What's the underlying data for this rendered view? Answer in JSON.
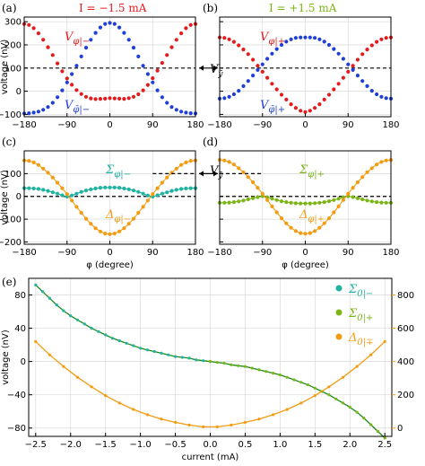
{
  "colors": {
    "red": "#e41a1c",
    "blue": "#1f3fd8",
    "teal": "#21b3a2",
    "olive": "#7cb516",
    "orange": "#f39c12",
    "darkgreen": "#1a8a1a",
    "gray": "#b8b8b8"
  },
  "chart_data": [
    {
      "panel": "(a)",
      "type": "scatter",
      "title": "I = −1.5 mA",
      "xlabel": "",
      "ylabel": "voltage (nV)",
      "xlim": [
        -180,
        180
      ],
      "ylim": [
        -110,
        320
      ],
      "xticks": [
        -180,
        -90,
        0,
        90,
        180
      ],
      "yticks": [
        -100,
        0,
        100,
        200,
        300
      ],
      "reference_line": 100,
      "series": [
        {
          "name": "V_φ|−",
          "color": "red",
          "x": [
            -180,
            -170,
            -160,
            -150,
            -140,
            -130,
            -120,
            -110,
            -100,
            -90,
            -80,
            -70,
            -60,
            -50,
            -40,
            -30,
            -20,
            -10,
            0,
            10,
            20,
            30,
            40,
            50,
            60,
            70,
            80,
            90,
            100,
            110,
            120,
            130,
            140,
            150,
            160,
            170,
            180
          ],
          "y": [
            290,
            286,
            272,
            250,
            222,
            190,
            156,
            120,
            86,
            55,
            28,
            5,
            -12,
            -24,
            -31,
            -34,
            -33,
            -32,
            -30,
            -31,
            -32,
            -33,
            -30,
            -24,
            -13,
            4,
            27,
            56,
            89,
            122,
            156,
            190,
            222,
            250,
            272,
            286,
            290
          ]
        },
        {
          "name": "V_φ̄|−",
          "color": "blue",
          "x": [
            -180,
            -170,
            -160,
            -150,
            -140,
            -130,
            -120,
            -110,
            -100,
            -90,
            -80,
            -70,
            -60,
            -50,
            -40,
            -30,
            -20,
            -10,
            0,
            10,
            20,
            30,
            40,
            50,
            60,
            70,
            80,
            90,
            100,
            110,
            120,
            130,
            140,
            150,
            160,
            170,
            180
          ],
          "y": [
            -96,
            -95,
            -92,
            -88,
            -80,
            -68,
            -50,
            -26,
            4,
            38,
            74,
            110,
            150,
            188,
            222,
            252,
            275,
            290,
            295,
            290,
            275,
            252,
            222,
            188,
            150,
            110,
            74,
            38,
            4,
            -26,
            -50,
            -68,
            -80,
            -88,
            -92,
            -95,
            -96
          ]
        }
      ]
    },
    {
      "panel": "(b)",
      "type": "scatter",
      "title": "I = +1.5 mA",
      "xlabel": "",
      "ylabel": "",
      "xlim": [
        -180,
        180
      ],
      "ylim": [
        -110,
        320
      ],
      "xticks": [
        -180,
        -90,
        0,
        90,
        180
      ],
      "yticks": [
        -100,
        0,
        100,
        200,
        300
      ],
      "reference_line": 100,
      "series": [
        {
          "name": "V_φ|+",
          "color": "red",
          "x": [
            -180,
            -170,
            -160,
            -150,
            -140,
            -130,
            -120,
            -110,
            -100,
            -90,
            -80,
            -70,
            -60,
            -50,
            -40,
            -30,
            -20,
            -10,
            0,
            10,
            20,
            30,
            40,
            50,
            60,
            70,
            80,
            90,
            100,
            110,
            120,
            130,
            140,
            150,
            160,
            170,
            180
          ],
          "y": [
            232,
            230,
            224,
            213,
            198,
            180,
            160,
            136,
            110,
            84,
            58,
            32,
            8,
            -15,
            -36,
            -56,
            -72,
            -84,
            -90,
            -84,
            -72,
            -56,
            -36,
            -15,
            8,
            32,
            58,
            84,
            110,
            136,
            160,
            180,
            198,
            213,
            224,
            230,
            232
          ]
        },
        {
          "name": "V_φ̄|+",
          "color": "blue",
          "x": [
            -180,
            -170,
            -160,
            -150,
            -140,
            -130,
            -120,
            -110,
            -100,
            -90,
            -80,
            -70,
            -60,
            -50,
            -40,
            -30,
            -20,
            -10,
            0,
            10,
            20,
            30,
            40,
            50,
            60,
            70,
            80,
            90,
            100,
            110,
            120,
            130,
            140,
            150,
            160,
            170,
            180
          ],
          "y": [
            -32,
            -30,
            -24,
            -13,
            2,
            22,
            44,
            68,
            92,
            116,
            140,
            162,
            182,
            200,
            214,
            224,
            230,
            232,
            232,
            232,
            230,
            224,
            214,
            200,
            182,
            162,
            140,
            116,
            92,
            68,
            44,
            22,
            2,
            -13,
            -24,
            -30,
            -32
          ]
        }
      ]
    },
    {
      "panel": "(c)",
      "type": "line",
      "xlabel": "φ (degree)",
      "ylabel": "voltage (nV)",
      "xlim": [
        -180,
        180
      ],
      "ylim": [
        -210,
        200
      ],
      "xticks": [
        -180,
        -90,
        0,
        90,
        180
      ],
      "yticks": [
        -200,
        -100,
        0,
        100
      ],
      "reference_line": 0,
      "series": [
        {
          "name": "Σ_φ|−",
          "color": "teal",
          "x": [
            -180,
            -170,
            -160,
            -150,
            -140,
            -130,
            -120,
            -110,
            -100,
            -90,
            -80,
            -70,
            -60,
            -50,
            -40,
            -30,
            -20,
            -10,
            0,
            10,
            20,
            30,
            40,
            50,
            60,
            70,
            80,
            90,
            100,
            110,
            120,
            130,
            140,
            150,
            160,
            170,
            180
          ],
          "y": [
            36,
            36,
            35,
            33,
            29,
            24,
            18,
            12,
            5,
            -1,
            4,
            12,
            20,
            26,
            31,
            35,
            38,
            39,
            39,
            39,
            38,
            35,
            31,
            26,
            20,
            12,
            4,
            -1,
            5,
            12,
            18,
            24,
            29,
            33,
            35,
            36,
            36
          ]
        },
        {
          "name": "Δ_φ|−",
          "color": "orange",
          "x": [
            -180,
            -170,
            -160,
            -150,
            -140,
            -130,
            -120,
            -110,
            -100,
            -90,
            -80,
            -70,
            -60,
            -50,
            -40,
            -30,
            -20,
            -10,
            0,
            10,
            20,
            30,
            40,
            50,
            60,
            70,
            80,
            90,
            100,
            110,
            120,
            130,
            140,
            150,
            160,
            170,
            180
          ],
          "y": [
            158,
            156,
            149,
            138,
            122,
            104,
            83,
            60,
            36,
            10,
            -18,
            -46,
            -72,
            -98,
            -120,
            -140,
            -154,
            -163,
            -166,
            -163,
            -154,
            -140,
            -120,
            -98,
            -72,
            -46,
            -18,
            10,
            36,
            60,
            83,
            104,
            122,
            138,
            149,
            156,
            158
          ]
        }
      ]
    },
    {
      "panel": "(d)",
      "type": "line",
      "xlabel": "φ (degree)",
      "ylabel": "",
      "xlim": [
        -180,
        180
      ],
      "ylim": [
        -210,
        200
      ],
      "xticks": [
        -180,
        -90,
        0,
        90,
        180
      ],
      "yticks": [
        -200,
        -100,
        0,
        100
      ],
      "reference_line": 0,
      "series": [
        {
          "name": "Σ_φ|+",
          "color": "olive",
          "x": [
            -180,
            -170,
            -160,
            -150,
            -140,
            -130,
            -120,
            -110,
            -100,
            -90,
            -80,
            -70,
            -60,
            -50,
            -40,
            -30,
            -20,
            -10,
            0,
            10,
            20,
            30,
            40,
            50,
            60,
            70,
            80,
            90,
            100,
            110,
            120,
            130,
            140,
            150,
            160,
            170,
            180
          ],
          "y": [
            -28,
            -28,
            -27,
            -25,
            -22,
            -18,
            -13,
            -8,
            -3,
            1,
            -4,
            -10,
            -16,
            -21,
            -25,
            -28,
            -30,
            -31,
            -31,
            -31,
            -30,
            -28,
            -25,
            -21,
            -16,
            -10,
            -4,
            1,
            -3,
            -8,
            -13,
            -18,
            -22,
            -25,
            -27,
            -28,
            -28
          ]
        },
        {
          "name": "Δ_φ|+",
          "color": "orange",
          "x": [
            -180,
            -170,
            -160,
            -150,
            -140,
            -130,
            -120,
            -110,
            -100,
            -90,
            -80,
            -70,
            -60,
            -50,
            -40,
            -30,
            -20,
            -10,
            0,
            10,
            20,
            30,
            40,
            50,
            60,
            70,
            80,
            90,
            100,
            110,
            120,
            130,
            140,
            150,
            160,
            170,
            180
          ],
          "y": [
            160,
            158,
            151,
            140,
            124,
            106,
            85,
            62,
            38,
            12,
            -16,
            -44,
            -70,
            -96,
            -118,
            -138,
            -152,
            -161,
            -164,
            -161,
            -152,
            -138,
            -118,
            -96,
            -70,
            -44,
            -16,
            12,
            38,
            62,
            85,
            106,
            124,
            140,
            151,
            158,
            160
          ]
        }
      ]
    },
    {
      "panel": "(e)",
      "type": "scatter",
      "xlabel": "current (mA)",
      "ylabel": "voltage (nV)",
      "xlim": [
        -2.6,
        2.6
      ],
      "ylim": [
        -90,
        100
      ],
      "xticks": [
        -2.5,
        -2.0,
        -1.5,
        -1.0,
        -0.5,
        0.0,
        0.5,
        1.0,
        1.5,
        2.0,
        2.5
      ],
      "yticks": [
        -80,
        -40,
        0,
        40,
        80
      ],
      "y2lim": [
        -50,
        900
      ],
      "y2ticks": [
        0,
        200,
        400,
        600,
        800
      ],
      "y2ticklabels": [
        "0",
        "200",
        "400",
        "600",
        "800"
      ],
      "series": [
        {
          "name": "Σ_0|−",
          "color": "teal",
          "x": [
            -2.5,
            -2.4,
            -2.3,
            -2.2,
            -2.1,
            -2.0,
            -1.9,
            -1.8,
            -1.7,
            -1.6,
            -1.5,
            -1.4,
            -1.3,
            -1.2,
            -1.1,
            -1.0,
            -0.9,
            -0.8,
            -0.7,
            -0.6,
            -0.5,
            -0.4,
            -0.3,
            -0.2,
            -0.1,
            0.0
          ],
          "y": [
            92,
            84,
            76,
            68,
            61,
            55,
            50,
            45,
            40,
            36,
            32,
            28,
            25,
            22,
            19,
            16,
            14,
            12,
            10,
            8,
            6,
            5,
            4,
            2,
            1,
            0
          ]
        },
        {
          "name": "Σ_0|+",
          "color": "olive",
          "x": [
            0.0,
            0.1,
            0.2,
            0.3,
            0.4,
            0.5,
            0.6,
            0.7,
            0.8,
            0.9,
            1.0,
            1.1,
            1.2,
            1.3,
            1.4,
            1.5,
            1.6,
            1.7,
            1.8,
            1.9,
            2.0,
            2.1,
            2.2,
            2.3,
            2.4,
            2.5
          ],
          "y": [
            0,
            -1,
            -2,
            -4,
            -5,
            -6,
            -8,
            -10,
            -12,
            -14,
            -16,
            -19,
            -22,
            -25,
            -28,
            -32,
            -36,
            -40,
            -45,
            -50,
            -55,
            -61,
            -68,
            -76,
            -84,
            -92
          ]
        },
        {
          "name": "Δ_0|∓",
          "color": "orange",
          "axis": "right",
          "x": [
            -2.5,
            -2.3,
            -2.1,
            -1.9,
            -1.7,
            -1.5,
            -1.3,
            -1.1,
            -0.9,
            -0.7,
            -0.5,
            -0.3,
            -0.1,
            0.1,
            0.3,
            0.5,
            0.7,
            0.9,
            1.1,
            1.3,
            1.5,
            1.7,
            1.9,
            2.1,
            2.3,
            2.5
          ],
          "y": [
            520,
            440,
            370,
            305,
            248,
            195,
            150,
            112,
            80,
            54,
            34,
            18,
            7,
            7,
            18,
            34,
            54,
            80,
            112,
            150,
            195,
            248,
            305,
            370,
            440,
            520
          ]
        }
      ]
    }
  ],
  "annotations": {
    "a_v": "V",
    "a_v_sub": "φ|−",
    "a_vbar_sub": "φ̄|−",
    "b_v_sub": "φ|+",
    "b_vbar_sub": "φ̄|+",
    "vy": "V",
    "vy_sub": "ȳ",
    "c_sigma": "Σ",
    "c_sigma_sub": "φ|−",
    "c_delta": "Δ",
    "c_delta_sub": "φ|−",
    "d_sigma_sub": "φ|+",
    "d_delta_sub": "φ|+",
    "e_sigma_minus_sub": "0|−",
    "e_sigma_plus_sub": "0|+",
    "e_delta_sub": "0|∓"
  }
}
